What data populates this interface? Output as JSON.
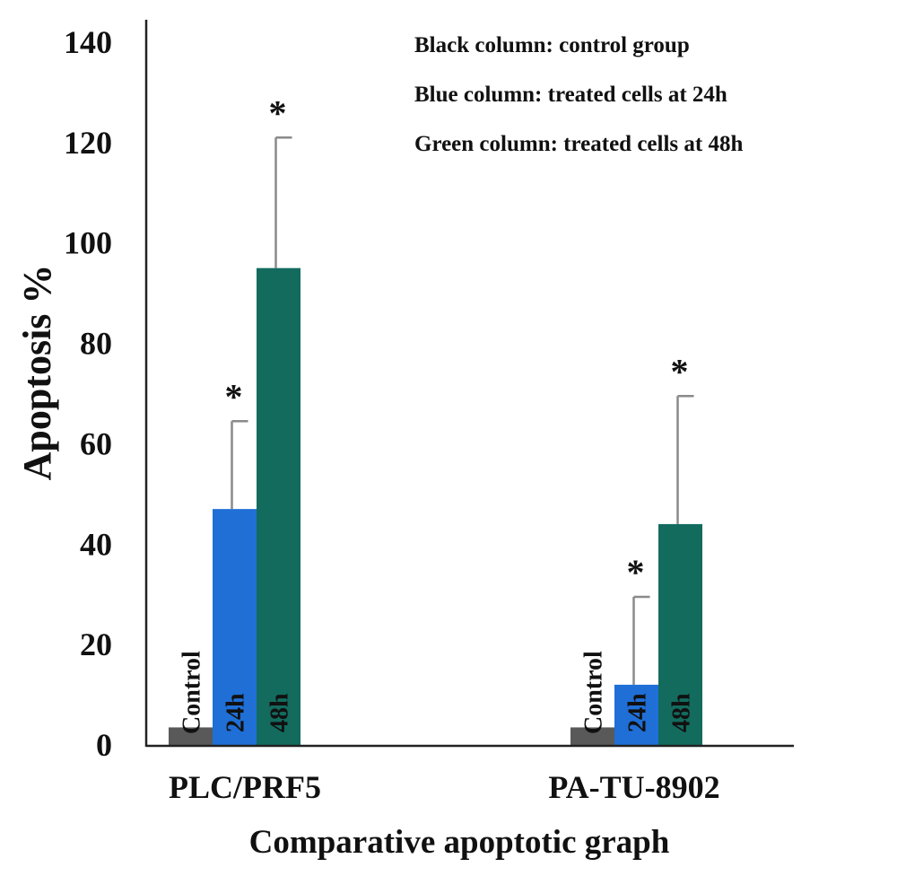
{
  "notes": [
    "Black column: control group",
    "Blue column: treated cells at 24h",
    "Green column: treated cells at 48h"
  ],
  "colors": {
    "control": "#595959",
    "h24": "#1f6fd6",
    "h48": "#136b5e",
    "error_bar": "#8a8a8a",
    "axis": "#222222"
  },
  "chart_data": {
    "type": "bar",
    "title": "",
    "xlabel": "Comparative apoptotic graph",
    "ylabel": "Apoptosis %",
    "ylim": [
      0,
      140
    ],
    "yticks": [
      0,
      20,
      40,
      60,
      80,
      100,
      120,
      140
    ],
    "categories": [
      "PLC/PRF5",
      "PA-TU-8902"
    ],
    "series": [
      {
        "name": "Control",
        "values": [
          3.5,
          3.5
        ],
        "error": [
          0,
          0
        ],
        "significant": [
          false,
          false
        ]
      },
      {
        "name": "24h",
        "values": [
          47,
          12
        ],
        "error": [
          17.5,
          17.5
        ],
        "significant": [
          true,
          true
        ]
      },
      {
        "name": "48h",
        "values": [
          95,
          44
        ],
        "error": [
          26,
          25.5
        ],
        "significant": [
          true,
          true
        ]
      }
    ],
    "significance_marker": "*",
    "grid": false,
    "legend": "none"
  }
}
